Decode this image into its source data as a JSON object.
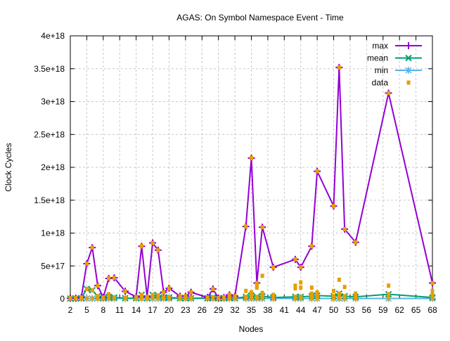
{
  "chart_data": {
    "type": "line",
    "title": "AGAS: On Symbol Namespace Event - Time",
    "xlabel": "Nodes",
    "ylabel": "Clock Cycles",
    "xlim": [
      2,
      68
    ],
    "ylim": [
      0,
      4e+18
    ],
    "xticks": [
      2,
      5,
      8,
      11,
      14,
      17,
      20,
      23,
      26,
      29,
      32,
      35,
      38,
      41,
      44,
      47,
      50,
      53,
      56,
      59,
      62,
      65,
      68
    ],
    "yticks": [
      {
        "v": 0,
        "label": "0"
      },
      {
        "v": 5e+17,
        "label": "5e+17"
      },
      {
        "v": 1e+18,
        "label": "1e+18"
      },
      {
        "v": 1.5e+18,
        "label": "1.5e+18"
      },
      {
        "v": 2e+18,
        "label": "2e+18"
      },
      {
        "v": 2.5e+18,
        "label": "2.5e+18"
      },
      {
        "v": 3e+18,
        "label": "3e+18"
      },
      {
        "v": 3.5e+18,
        "label": "3.5e+18"
      },
      {
        "v": 4e+18,
        "label": "4e+18"
      }
    ],
    "grid": true,
    "legend_position": "top-right",
    "x": [
      2,
      3,
      4,
      5,
      6,
      7,
      8,
      9,
      10,
      12,
      14,
      15,
      16,
      17,
      18,
      19,
      20,
      22,
      23,
      24,
      27,
      28,
      29,
      30,
      31,
      32,
      34,
      35,
      36,
      37,
      39,
      43,
      44,
      46,
      47,
      50,
      51,
      52,
      54,
      60,
      68
    ],
    "series": [
      {
        "name": "max",
        "color": "#9400d3",
        "values": [
          1e+16,
          1e+16,
          2e+16,
          5.35e+17,
          7.8e+17,
          2e+17,
          2e+16,
          3.1e+17,
          3.2e+17,
          1.15e+17,
          3e+16,
          8e+17,
          3e+16,
          8.5e+17,
          7.4e+17,
          1e+17,
          1.6e+17,
          4e+16,
          4e+16,
          1e+17,
          2e+16,
          1.5e+17,
          1e+16,
          2e+16,
          6e+16,
          4e+16,
          1.1e+18,
          2.14e+18,
          2.4e+17,
          1.09e+18,
          4.8e+17,
          6e+17,
          4.8e+17,
          8e+17,
          1.94e+18,
          1.41e+18,
          3.52e+18,
          1.06e+18,
          8.6e+17,
          3.13e+18,
          2.4e+17
        ]
      },
      {
        "name": "mean",
        "color": "#009e73",
        "values": [
          5000000000000000.0,
          5000000000000000.0,
          1e+16,
          1.5e+17,
          1.3e+17,
          4e+16,
          1e+16,
          3e+16,
          2e+16,
          1e+16,
          1e+16,
          6e+16,
          1e+16,
          6e+16,
          5e+16,
          2e+16,
          2e+16,
          1e+16,
          1e+16,
          1e+16,
          1e+16,
          2e+16,
          1e+16,
          1e+16,
          2e+16,
          1e+16,
          3e+16,
          5e+16,
          3e+16,
          4e+16,
          2e+16,
          3e+16,
          3e+16,
          4e+16,
          5e+16,
          4e+16,
          8e+16,
          4e+16,
          3e+16,
          7e+16,
          2e+16
        ]
      },
      {
        "name": "min",
        "color": "#56b4e9",
        "values": [
          5000000000000000.0,
          5000000000000000.0,
          5000000000000000.0,
          5000000000000000.0,
          5000000000000000.0,
          5000000000000000.0,
          5000000000000000.0,
          5000000000000000.0,
          5000000000000000.0,
          5000000000000000.0,
          5000000000000000.0,
          5000000000000000.0,
          5000000000000000.0,
          5000000000000000.0,
          5000000000000000.0,
          5000000000000000.0,
          5000000000000000.0,
          5000000000000000.0,
          5000000000000000.0,
          5000000000000000.0,
          5000000000000000.0,
          5000000000000000.0,
          5000000000000000.0,
          5000000000000000.0,
          5000000000000000.0,
          5000000000000000.0,
          5000000000000000.0,
          5000000000000000.0,
          5000000000000000.0,
          5000000000000000.0,
          5000000000000000.0,
          5000000000000000.0,
          5000000000000000.0,
          5000000000000000.0,
          5000000000000000.0,
          5000000000000000.0,
          5000000000000000.0,
          5000000000000000.0,
          5000000000000000.0,
          5000000000000000.0,
          5000000000000000.0
        ]
      }
    ],
    "data_points": {
      "name": "data",
      "color": "#e69f00",
      "extra": [
        [
          5,
          1.5e+17
        ],
        [
          9,
          7e+16
        ],
        [
          15,
          4e+16
        ],
        [
          17,
          4e+16
        ],
        [
          31,
          6e+16
        ],
        [
          34,
          1.2e+17
        ],
        [
          35,
          1e+17
        ],
        [
          36,
          2e+17
        ],
        [
          36,
          1.7e+17
        ],
        [
          37,
          3.5e+17
        ],
        [
          37,
          9e+16
        ],
        [
          39,
          6e+16
        ],
        [
          43,
          2e+17
        ],
        [
          43,
          1.6e+17
        ],
        [
          44,
          2.5e+17
        ],
        [
          44,
          1.7e+17
        ],
        [
          46,
          1.7e+17
        ],
        [
          46,
          8e+16
        ],
        [
          47,
          1e+17
        ],
        [
          50,
          1.2e+17
        ],
        [
          51,
          2.9e+17
        ],
        [
          51,
          6e+16
        ],
        [
          52,
          1.8e+17
        ],
        [
          54,
          8e+16
        ],
        [
          60,
          2e+17
        ],
        [
          68,
          1.2e+17
        ],
        [
          68,
          6e+16
        ]
      ]
    }
  }
}
